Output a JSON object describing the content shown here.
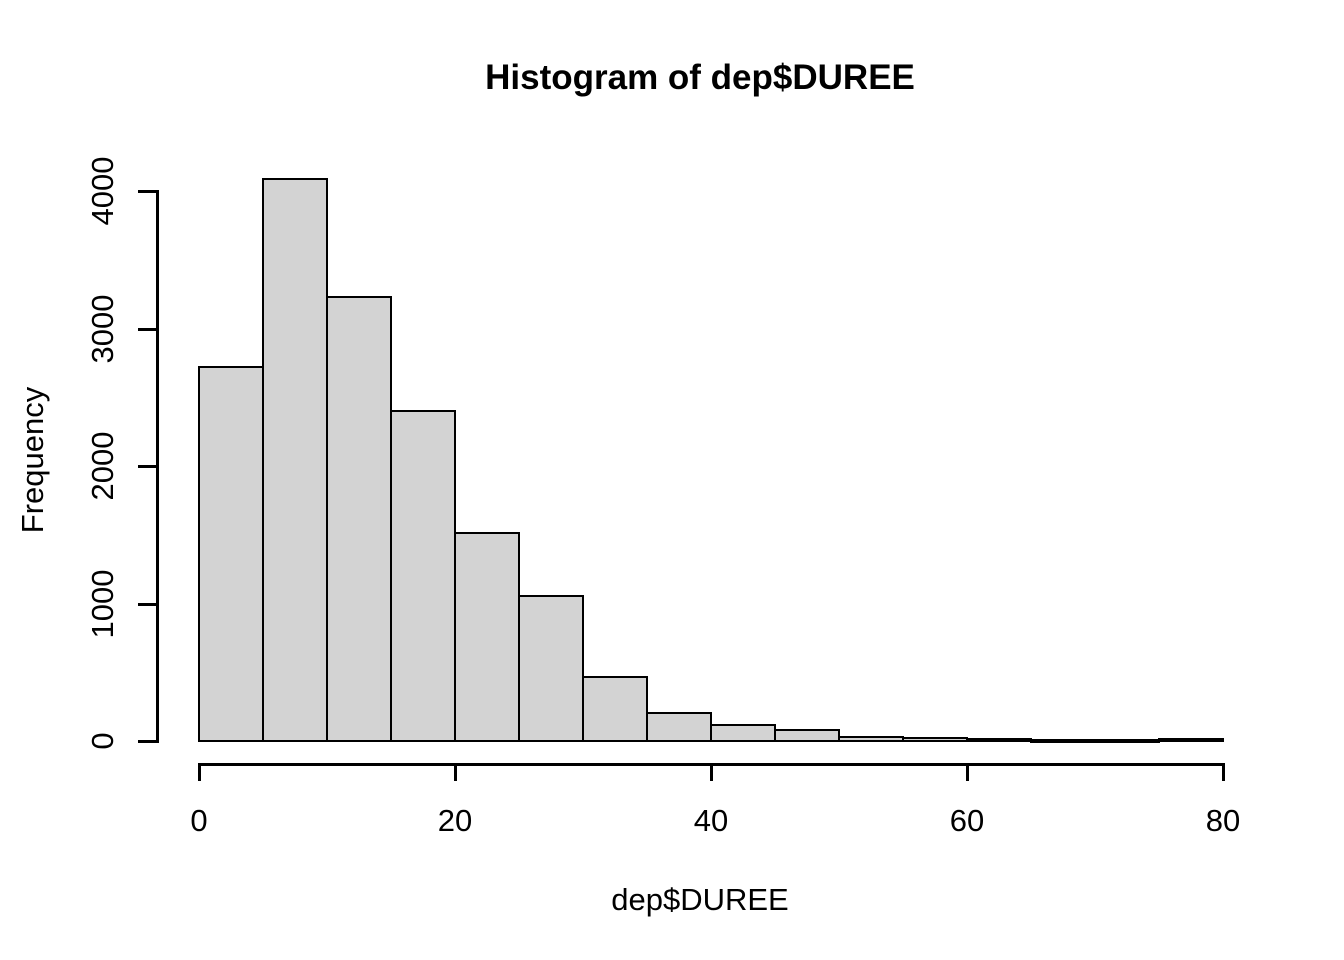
{
  "figure": {
    "background": "#ffffff"
  },
  "chart_data": {
    "type": "bar",
    "subtype": "histogram",
    "title": "Histogram of dep$DUREE",
    "xlabel": "dep$DUREE",
    "ylabel": "Frequency",
    "bin_edges": [
      0,
      5,
      10,
      15,
      20,
      25,
      30,
      35,
      40,
      45,
      50,
      55,
      60,
      65,
      70,
      75,
      80
    ],
    "counts": [
      2715,
      4080,
      3225,
      2390,
      1505,
      1050,
      460,
      200,
      110,
      75,
      22,
      14,
      7,
      3,
      1,
      10
    ],
    "x_ticks": [
      0,
      20,
      40,
      60,
      80
    ],
    "y_ticks": [
      0,
      1000,
      2000,
      3000,
      4000
    ],
    "xlim": [
      0,
      80
    ],
    "ylim": [
      0,
      4080
    ],
    "grid": false,
    "legend": "none",
    "bar_fill": "#d3d3d3",
    "bar_border": "#000000",
    "axis_color": "#000000",
    "text_color": "#000000"
  }
}
